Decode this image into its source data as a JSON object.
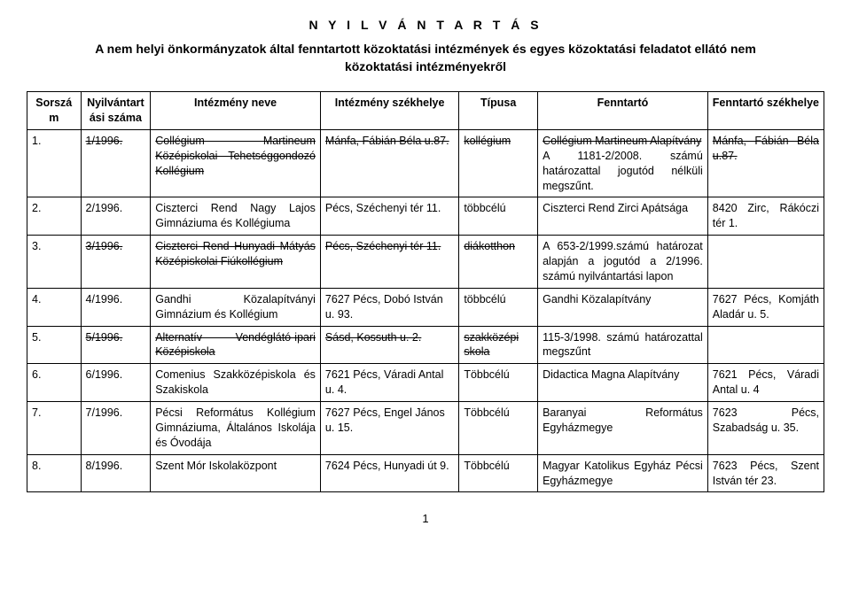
{
  "title": "N Y I L V Á N T A R T Á S",
  "subtitle_line1": "A nem helyi önkormányzatok által fenntartott közoktatási intézmények és egyes közoktatási feladatot ellátó nem",
  "subtitle_line2": "közoktatási intézményekről",
  "headers": {
    "sorszam": "Sorszám",
    "nyilv": "Nyilvántart ási száma",
    "intez": "Intézmény neve",
    "szek": "Intézmény székhelye",
    "tipus": "Típusa",
    "fenn": "Fenntartó",
    "fennszek": "Fenntartó székhelye"
  },
  "rows": [
    {
      "sorszam": "1.",
      "sorszam_strike": false,
      "nyilv": "1/1996.",
      "nyilv_strike": true,
      "intez": "Collégium Martineum Középiskolai Tehetséggondozó Kollégium",
      "intez_strike": true,
      "szek": "Mánfa, Fábián Béla u.87.",
      "szek_strike": true,
      "tipus": "kollégium",
      "tipus_strike": true,
      "fenn_html": "<span class='strike'>Collégium Martineum Alapítvány</span><br>A 1181-2/2008. számú határozattal jogutód nélküli megszűnt.",
      "fennszek": "Mánfa, Fábián Béla u.87.",
      "fennszek_strike": true
    },
    {
      "sorszam": "2.",
      "nyilv": "2/1996.",
      "intez": "Ciszterci Rend Nagy Lajos Gimnáziuma és Kollégiuma",
      "szek": "Pécs, Széchenyi tér 11.",
      "tipus": "többcélú",
      "fenn_html": "Ciszterci Rend Zirci Apátsága",
      "fennszek": "8420 Zirc, Rákóczi tér 1."
    },
    {
      "sorszam": "3.",
      "nyilv": "3/1996.",
      "nyilv_strike": true,
      "intez": "Ciszterci Rend Hunyadi Mátyás Középiskolai Fiúkollégium",
      "intez_strike": true,
      "szek": "Pécs, Széchenyi tér 11.",
      "szek_strike": true,
      "tipus": "diákotthon",
      "tipus_strike": true,
      "fenn_html": "A 653-2/1999.számú határozat alapján a jogutód a 2/1996. számú nyilvántartási lapon",
      "fennszek": ""
    },
    {
      "sorszam": "4.",
      "nyilv": "4/1996.",
      "intez": "Gandhi Közalapítványi Gimnázium és Kollégium",
      "szek": "7627 Pécs, Dobó István u. 93.",
      "tipus": "többcélú",
      "fenn_html": "Gandhi Közalapítvány",
      "fennszek": "7627 Pécs, Komjáth Aladár u. 5."
    },
    {
      "sorszam": "5.",
      "nyilv": "5/1996.",
      "nyilv_strike": true,
      "intez": "Alternatív Vendéglátó-ipari Középiskola",
      "intez_strike": true,
      "szek": "Sásd, Kossuth u. 2.",
      "szek_strike": true,
      "tipus": "szakközépi skola",
      "tipus_strike": true,
      "fenn_html": "115-3/1998. számú határozattal megszűnt",
      "fennszek": ""
    },
    {
      "sorszam": "6.",
      "nyilv": "6/1996.",
      "intez": "Comenius Szakközépiskola és Szakiskola",
      "szek": "7621 Pécs, Váradi Antal u. 4.",
      "tipus": "Többcélú",
      "fenn_html": "Didactica Magna Alapítvány",
      "fennszek": "7621 Pécs, Váradi Antal u. 4"
    },
    {
      "sorszam": "7.",
      "nyilv": "7/1996.",
      "intez": "Pécsi Református Kollégium Gimnáziuma, Általános Iskolája és Óvodája",
      "szek": "7627 Pécs, Engel János u. 15.",
      "tipus": "Többcélú",
      "fenn_html": "Baranyai Református Egyházmegye",
      "fennszek": "7623 Pécs, Szabadság u. 35."
    },
    {
      "sorszam": "8.",
      "nyilv": "8/1996.",
      "intez": "Szent Mór Iskolaközpont",
      "szek": "7624 Pécs, Hunyadi út 9.",
      "tipus": "Többcélú",
      "fenn_html": "Magyar Katolikus Egyház Pécsi Egyházmegye",
      "fennszek": "7623 Pécs, Szent István tér 23."
    }
  ],
  "page_number": "1"
}
